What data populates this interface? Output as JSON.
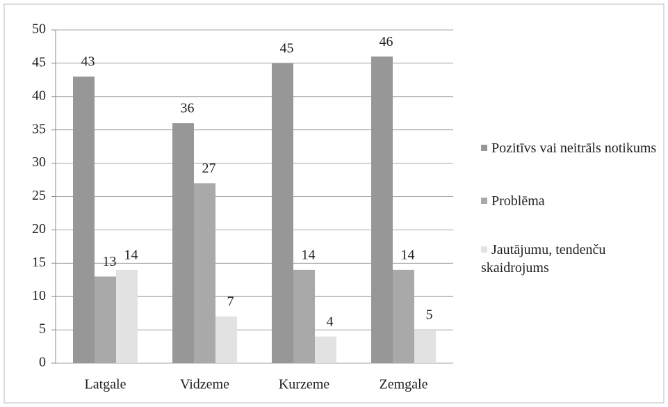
{
  "chart_data": {
    "type": "bar",
    "categories": [
      "Latgale",
      "Vidzeme",
      "Kurzeme",
      "Zemgale"
    ],
    "series": [
      {
        "name": "Pozitīvs vai neitrāls notikums",
        "color": "#979797",
        "values": [
          43,
          36,
          45,
          46
        ]
      },
      {
        "name": "Problēma",
        "color": "#a9a9a9",
        "values": [
          13,
          27,
          14,
          14
        ]
      },
      {
        "name": "Jautājumu, tendenču skaidrojums",
        "color": "#e2e2e2",
        "values": [
          14,
          7,
          4,
          5
        ]
      }
    ],
    "ylim": [
      0,
      50
    ],
    "yticks": [
      0,
      5,
      10,
      15,
      20,
      25,
      30,
      35,
      40,
      45,
      50
    ],
    "grid": true,
    "legend": "right"
  }
}
